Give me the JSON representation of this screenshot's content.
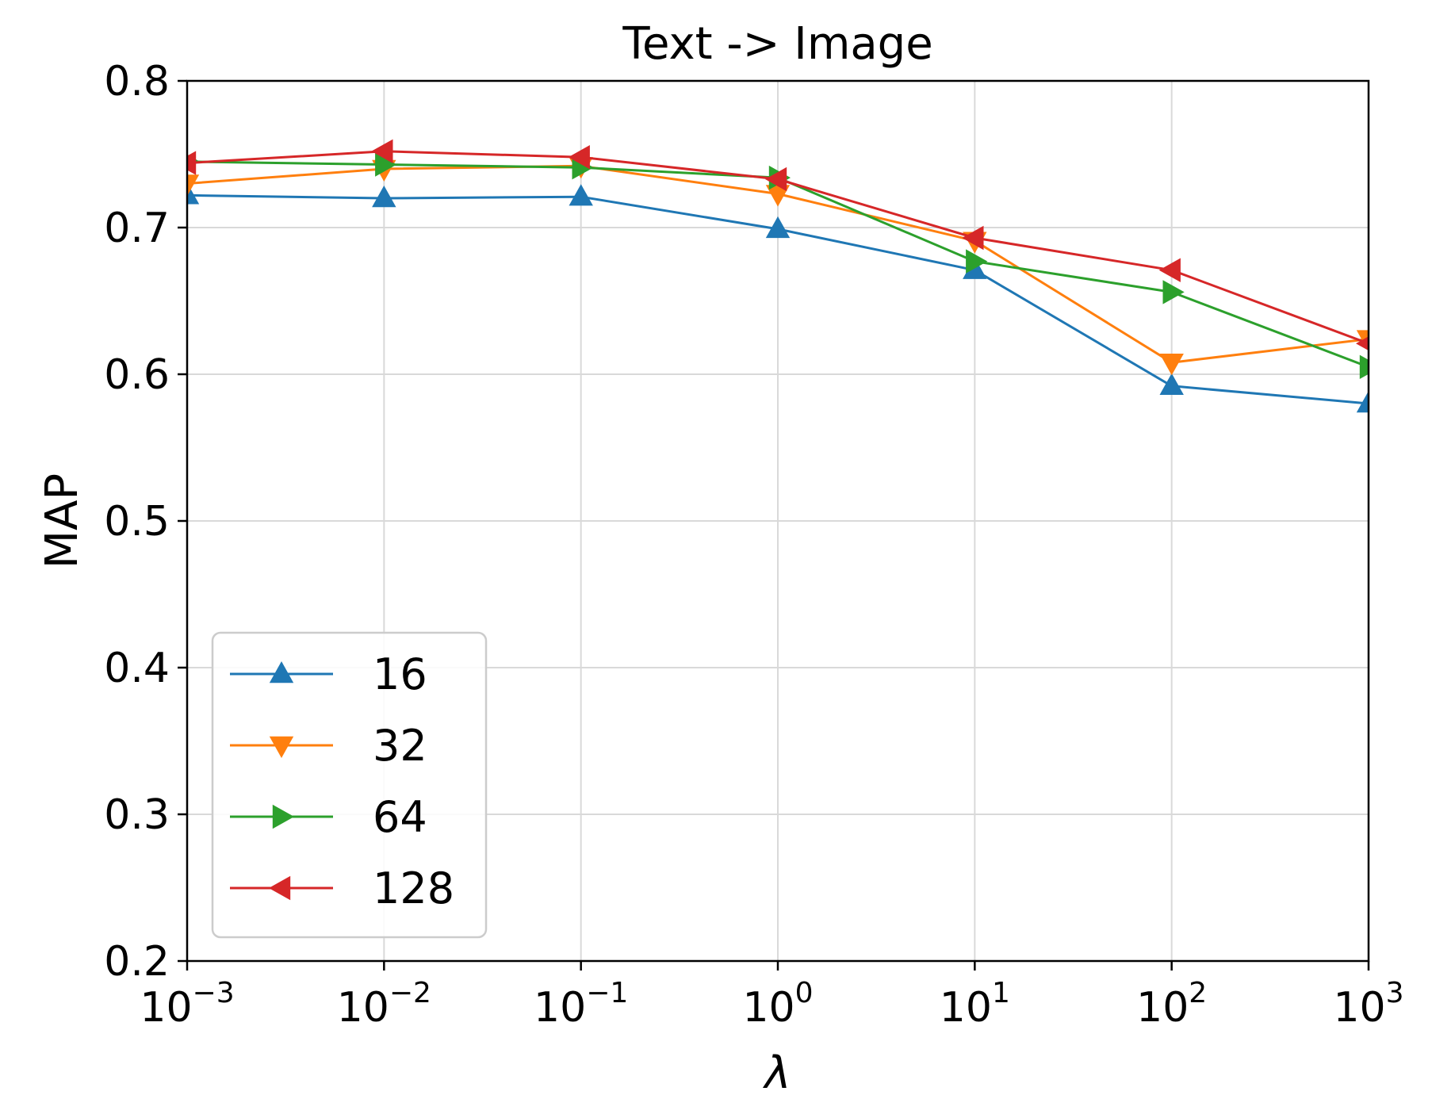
{
  "chart_data": {
    "type": "line",
    "title": "Text -> Image",
    "xlabel": "λ",
    "ylabel": "MAP",
    "x_scale": "log",
    "xlim": [
      0.001,
      1000
    ],
    "ylim": [
      0.2,
      0.8
    ],
    "x": [
      0.001,
      0.01,
      0.1,
      1,
      10,
      100,
      1000
    ],
    "x_ticks": [
      {
        "base": "10",
        "exp": "−3"
      },
      {
        "base": "10",
        "exp": "−2"
      },
      {
        "base": "10",
        "exp": "−1"
      },
      {
        "base": "10",
        "exp": "0"
      },
      {
        "base": "10",
        "exp": "1"
      },
      {
        "base": "10",
        "exp": "2"
      },
      {
        "base": "10",
        "exp": "3"
      }
    ],
    "y_ticks": [
      "0.2",
      "0.3",
      "0.4",
      "0.5",
      "0.6",
      "0.7",
      "0.8"
    ],
    "grid": true,
    "legend_position": "lower-left",
    "series": [
      {
        "name": "16",
        "color": "#1f77b4",
        "marker": "triangle-up",
        "values": [
          0.722,
          0.72,
          0.721,
          0.699,
          0.671,
          0.592,
          0.58
        ]
      },
      {
        "name": "32",
        "color": "#ff7f0e",
        "marker": "triangle-down",
        "values": [
          0.73,
          0.74,
          0.742,
          0.723,
          0.691,
          0.608,
          0.624
        ]
      },
      {
        "name": "64",
        "color": "#2ca02c",
        "marker": "triangle-right",
        "values": [
          0.745,
          0.743,
          0.741,
          0.734,
          0.677,
          0.656,
          0.605
        ]
      },
      {
        "name": "128",
        "color": "#d62728",
        "marker": "triangle-left",
        "values": [
          0.744,
          0.752,
          0.748,
          0.733,
          0.693,
          0.671,
          0.621
        ]
      }
    ]
  }
}
